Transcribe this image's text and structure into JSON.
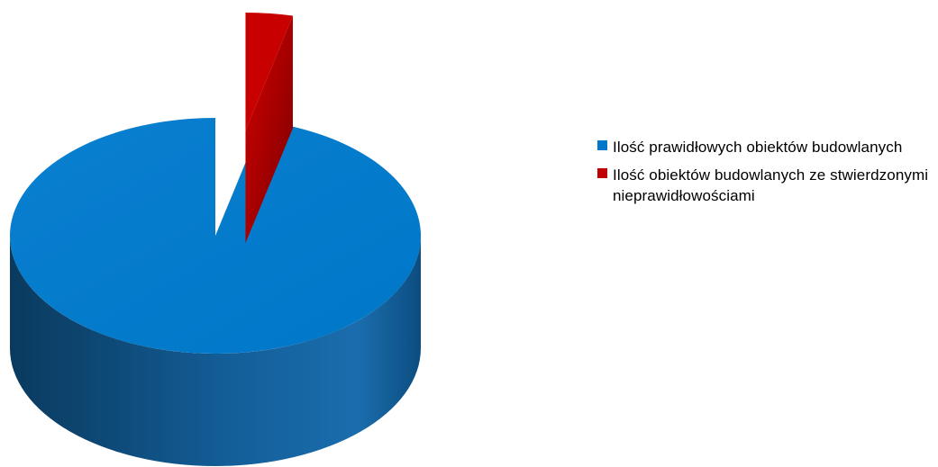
{
  "chart_data": {
    "type": "pie",
    "variant": "3d-exploded",
    "labels": [
      "Ilość prawidłowych obiektów budowlanych",
      "Ilość obiektów budowlanych ze stwierdzonymi nieprawidłowościami"
    ],
    "values": [
      96.3,
      3.7
    ],
    "colors": [
      "#0077C8",
      "#C00000"
    ],
    "exploded": [
      false,
      true
    ],
    "legend_position": "right",
    "title": ""
  },
  "legend": {
    "items": [
      {
        "label": "Ilość prawidłowych obiektów budowlanych",
        "color": "#0077C8"
      },
      {
        "label": "Ilość obiektów budowlanych ze stwierdzonymi nieprawidłowościami",
        "color": "#C00000"
      }
    ]
  }
}
